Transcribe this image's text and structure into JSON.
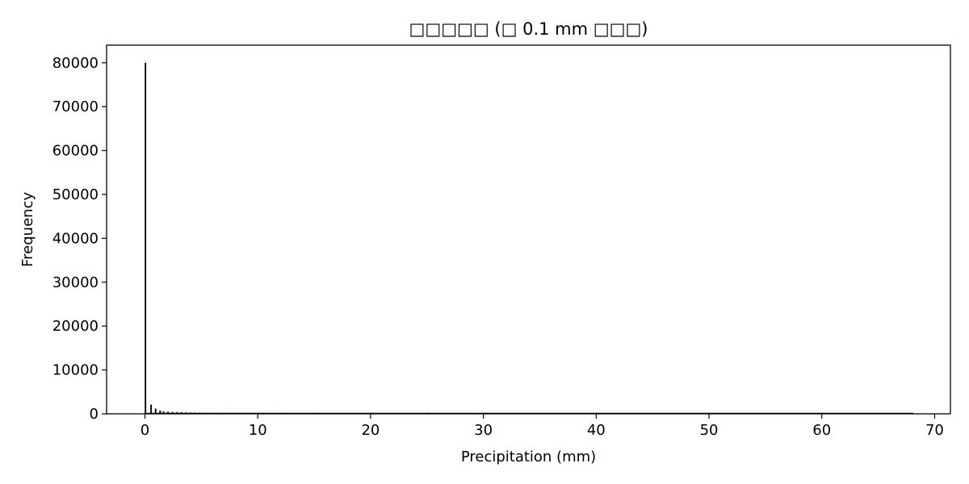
{
  "chart_data": {
    "type": "bar",
    "title": "□□□□□ (□ 0.1 mm □□□)",
    "xlabel": "Precipitation (mm)",
    "ylabel": "Frequency",
    "xlim": [
      -3.4,
      71.4
    ],
    "ylim": [
      0,
      84000
    ],
    "x_ticks": [
      0,
      10,
      20,
      30,
      40,
      50,
      60,
      70
    ],
    "y_ticks": [
      0,
      10000,
      20000,
      30000,
      40000,
      50000,
      60000,
      70000,
      80000
    ],
    "grid": false,
    "legend": "none",
    "bin_width": 0.1,
    "bar_color": "#000000",
    "x": [
      0.0,
      0.5,
      0.9,
      1.3,
      1.6,
      2.0,
      2.4,
      2.8,
      3.2,
      3.6,
      4.0,
      4.4,
      4.8,
      5.2,
      5.6,
      6.0,
      6.4,
      6.8,
      7.2,
      7.6,
      8.0,
      8.4,
      8.8,
      9.2,
      9.6,
      10.0,
      12.0,
      15.0,
      20.0,
      25.0,
      30.0,
      40.0,
      50.0,
      60.0,
      68.0
    ],
    "values": [
      80000,
      2100,
      1200,
      750,
      560,
      480,
      420,
      380,
      350,
      320,
      300,
      280,
      260,
      240,
      225,
      210,
      200,
      190,
      180,
      170,
      160,
      150,
      145,
      140,
      130,
      120,
      80,
      50,
      30,
      20,
      12,
      6,
      3,
      2,
      1
    ]
  }
}
